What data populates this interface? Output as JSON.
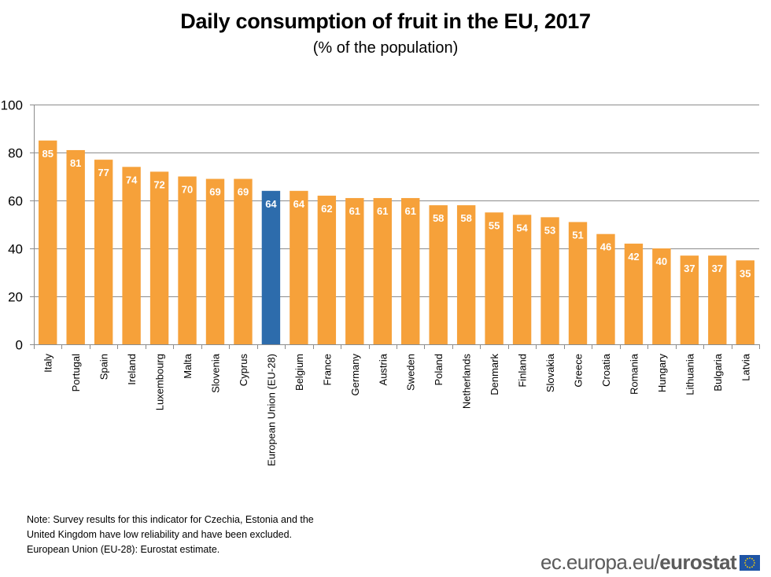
{
  "chart_data": {
    "type": "bar",
    "title": "Daily consumption of fruit in the EU, 2017",
    "subtitle": "(% of the population)",
    "xlabel": "",
    "ylabel": "",
    "ylim": [
      0,
      100
    ],
    "yticks": [
      0,
      20,
      40,
      60,
      80,
      100
    ],
    "grid": true,
    "legend": "none",
    "categories": [
      "Italy",
      "Portugal",
      "Spain",
      "Ireland",
      "Luxembourg",
      "Malta",
      "Slovenia",
      "Cyprus",
      "European Union (EU-28)",
      "Belgium",
      "France",
      "Germany",
      "Austria",
      "Sweden",
      "Poland",
      "Netherlands",
      "Denmark",
      "Finland",
      "Slovakia",
      "Greece",
      "Croatia",
      "Romania",
      "Hungary",
      "Lithuania",
      "Bulgaria",
      "Latvia"
    ],
    "values": [
      85,
      81,
      77,
      74,
      72,
      70,
      69,
      69,
      64,
      64,
      62,
      61,
      61,
      61,
      58,
      58,
      55,
      54,
      53,
      51,
      46,
      42,
      40,
      37,
      37,
      35
    ],
    "labels": [
      "85",
      "81",
      "77",
      "74",
      "72",
      "70",
      "69",
      "69",
      "64",
      "64",
      "62",
      "61",
      "61",
      "61",
      "58",
      "58",
      "55",
      "54",
      "53",
      "51",
      "46",
      "42",
      "40",
      "37",
      "37",
      "35"
    ],
    "highlight_category": "European Union (EU-28)",
    "colors": {
      "default": "#f6a13a",
      "highlight": "#2d6cac",
      "label": "#ffffff",
      "grid": "#8c8c8c"
    }
  },
  "note": {
    "lines": [
      "Note: Survey results for this indicator for Czechia, Estonia and the",
      "United Kingdom  have low reliability and have been excluded.",
      "European Union (EU-28): Eurostat estimate."
    ]
  },
  "footer": {
    "logo_plain": "ec.europa.eu/",
    "logo_bold": "eurostat",
    "flag_icon": "eu-flag-icon"
  }
}
